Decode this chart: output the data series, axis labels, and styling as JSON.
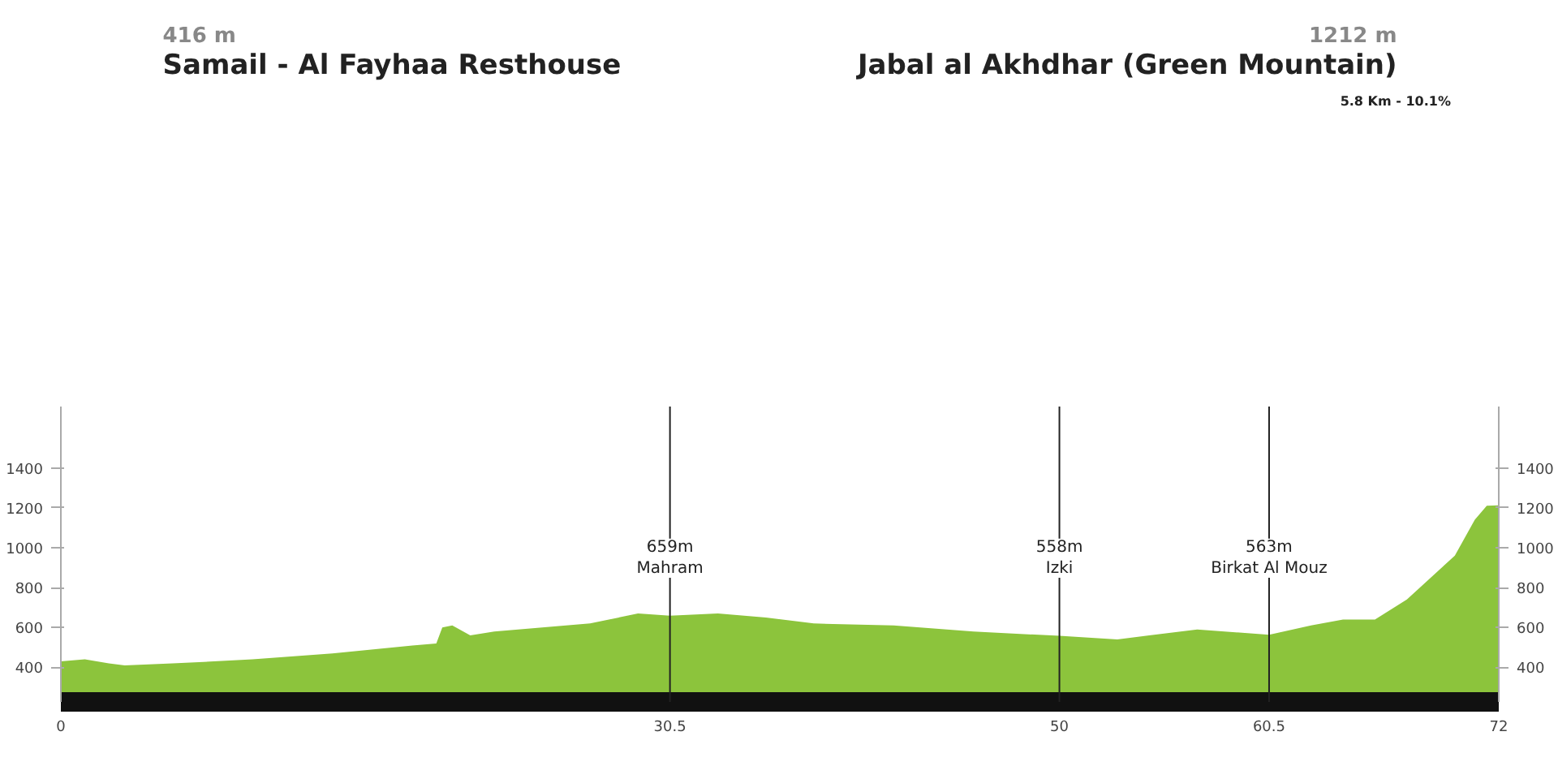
{
  "chart_data": {
    "type": "area",
    "x": [
      0,
      1.2,
      2.4,
      3.2,
      5.6,
      9.6,
      13.6,
      17.6,
      18.8,
      19.1,
      19.6,
      20.5,
      21.7,
      24.1,
      26.5,
      28.9,
      30.5,
      32.9,
      35.3,
      37.7,
      41.7,
      45.7,
      50,
      52.9,
      54.5,
      56.9,
      60.5,
      62.6,
      64.2,
      65.8,
      67.4,
      68.6,
      69.8,
      70.8,
      71.4,
      72
    ],
    "values": [
      430,
      440,
      420,
      410,
      420,
      440,
      470,
      510,
      520,
      600,
      610,
      560,
      580,
      600,
      620,
      670,
      659,
      670,
      650,
      620,
      610,
      580,
      558,
      540,
      560,
      590,
      563,
      610,
      640,
      640,
      740,
      850,
      960,
      1140,
      1210,
      1212
    ],
    "color": "#8cc43c",
    "xlim": [
      0,
      72
    ],
    "xticks": [
      0,
      30.5,
      50,
      60.5,
      72
    ],
    "ylim": [
      227,
      1707
    ],
    "yticks": [
      400,
      600,
      800,
      1000,
      1200,
      1400
    ],
    "y2lim": [
      227,
      1707
    ],
    "y2ticks": [
      400,
      600,
      800,
      1000,
      1200,
      1400
    ],
    "ref_lines": [
      {
        "axis": "x",
        "value": 30.5,
        "label": "659m\nMahram",
        "color": "#222222"
      },
      {
        "axis": "x",
        "value": 50,
        "label": "558m\nIzki",
        "color": "#222222"
      },
      {
        "axis": "x",
        "value": 60.5,
        "label": "563m\nBirkat Al Mouz",
        "color": "#222222"
      }
    ],
    "annotations": [
      "416 m",
      "Samail - Al Fayhaa Resthouse",
      "1212 m",
      "Jabal al Akhdhar (Green Mountain)",
      "5.8 Km - 10.1%"
    ]
  }
}
